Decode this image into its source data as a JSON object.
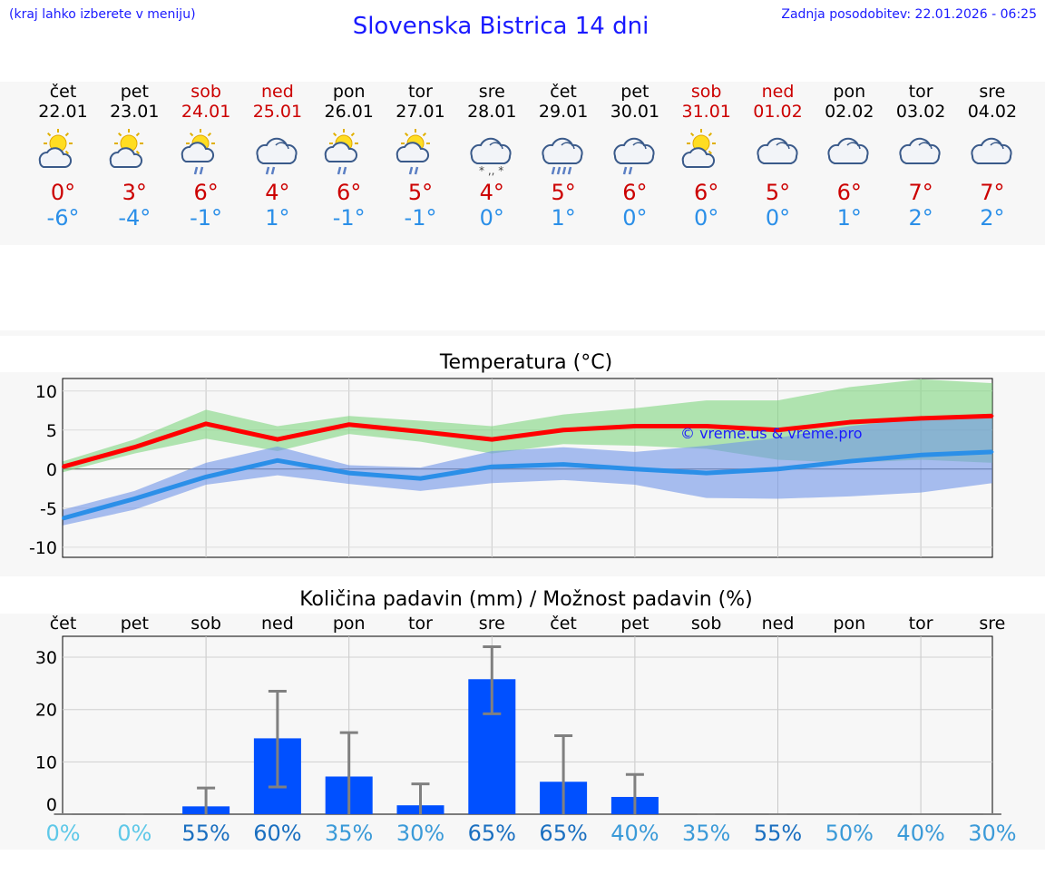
{
  "header": {
    "hint": "(kraj lahko izberete v meniju)",
    "title": "Slovenska Bistrica 14 dni",
    "updated": "Zadnja posodobitev: 22.01.2026 - 06:25"
  },
  "days": [
    {
      "name": "čet",
      "date": "22.01",
      "weekend": false,
      "icon": "sun-cloud-icon",
      "tmax": "0°",
      "tmin": "-6°"
    },
    {
      "name": "pet",
      "date": "23.01",
      "weekend": false,
      "icon": "sun-cloud-icon",
      "tmax": "3°",
      "tmin": "-4°"
    },
    {
      "name": "sob",
      "date": "24.01",
      "weekend": true,
      "icon": "sun-cloud-rain-icon",
      "tmax": "6°",
      "tmin": "-1°"
    },
    {
      "name": "ned",
      "date": "25.01",
      "weekend": true,
      "icon": "cloud-rain-icon",
      "tmax": "4°",
      "tmin": "1°"
    },
    {
      "name": "pon",
      "date": "26.01",
      "weekend": false,
      "icon": "sun-cloud-rain-icon",
      "tmax": "6°",
      "tmin": "-1°"
    },
    {
      "name": "tor",
      "date": "27.01",
      "weekend": false,
      "icon": "sun-cloud-rain-icon",
      "tmax": "5°",
      "tmin": "-1°"
    },
    {
      "name": "sre",
      "date": "28.01",
      "weekend": false,
      "icon": "cloud-snow-rain-icon",
      "tmax": "4°",
      "tmin": "0°"
    },
    {
      "name": "čet",
      "date": "29.01",
      "weekend": false,
      "icon": "cloud-heavy-rain-icon",
      "tmax": "5°",
      "tmin": "1°"
    },
    {
      "name": "pet",
      "date": "30.01",
      "weekend": false,
      "icon": "cloud-rain-icon",
      "tmax": "6°",
      "tmin": "0°"
    },
    {
      "name": "sob",
      "date": "31.01",
      "weekend": true,
      "icon": "sun-cloud-icon",
      "tmax": "6°",
      "tmin": "0°"
    },
    {
      "name": "ned",
      "date": "01.02",
      "weekend": true,
      "icon": "cloud-icon",
      "tmax": "5°",
      "tmin": "0°"
    },
    {
      "name": "pon",
      "date": "02.02",
      "weekend": false,
      "icon": "cloud-icon",
      "tmax": "6°",
      "tmin": "1°"
    },
    {
      "name": "tor",
      "date": "03.02",
      "weekend": false,
      "icon": "cloud-icon",
      "tmax": "7°",
      "tmin": "2°"
    },
    {
      "name": "sre",
      "date": "04.02",
      "weekend": false,
      "icon": "cloud-icon",
      "tmax": "7°",
      "tmin": "2°"
    }
  ],
  "colors": {
    "max_line": "#ff0000",
    "min_line": "#2b8fe8",
    "max_band": "#7fd67f",
    "min_band": "#6f94e8",
    "bar": "#0050ff",
    "error_bar": "#808080",
    "weekend": "#cc0000"
  },
  "watermark": "© vreme.us & vreme.pro",
  "chart_data": [
    {
      "type": "line",
      "title": "Temperatura (°C)",
      "x": [
        "22.01",
        "23.01",
        "24.01",
        "25.01",
        "26.01",
        "27.01",
        "28.01",
        "29.01",
        "30.01",
        "31.01",
        "01.02",
        "02.02",
        "03.02",
        "04.02"
      ],
      "series": [
        {
          "name": "max",
          "values": [
            0.3,
            2.8,
            5.8,
            3.8,
            5.7,
            4.8,
            3.8,
            5.0,
            5.5,
            5.5,
            5.0,
            6.0,
            6.5,
            6.8
          ],
          "band_low": [
            -0.4,
            2.0,
            3.9,
            2.3,
            4.5,
            3.5,
            2.0,
            3.2,
            3.0,
            2.6,
            1.2,
            0.8,
            1.2,
            0.8
          ],
          "band_high": [
            1.0,
            3.8,
            7.6,
            5.5,
            6.8,
            6.2,
            5.5,
            7.0,
            7.8,
            8.8,
            8.8,
            10.5,
            11.5,
            11.0
          ]
        },
        {
          "name": "min",
          "values": [
            -6.3,
            -3.8,
            -1.0,
            1.1,
            -0.5,
            -1.2,
            0.3,
            0.6,
            0.0,
            -0.5,
            0.0,
            1.0,
            1.8,
            2.2
          ],
          "band_low": [
            -7.2,
            -5.2,
            -2.0,
            -0.8,
            -1.9,
            -2.8,
            -1.8,
            -1.4,
            -2.0,
            -3.7,
            -3.8,
            -3.5,
            -3.0,
            -1.8
          ],
          "band_high": [
            -5.2,
            -2.8,
            0.8,
            2.9,
            0.5,
            0.2,
            2.3,
            2.8,
            2.2,
            3.0,
            4.0,
            5.5,
            6.5,
            6.5
          ]
        }
      ],
      "yticks": [
        10,
        5,
        0,
        -5,
        -10
      ],
      "ylim": [
        -11.3,
        11.6
      ]
    },
    {
      "type": "bar",
      "title": "Količina padavin (mm) / Možnost padavin (%)",
      "categories": [
        "čet",
        "pet",
        "sob",
        "ned",
        "pon",
        "tor",
        "sre",
        "čet",
        "pet",
        "sob",
        "ned",
        "pon",
        "tor",
        "sre"
      ],
      "values": [
        0,
        0,
        1.5,
        14.5,
        7.2,
        1.7,
        25.8,
        6.2,
        3.3,
        0,
        0,
        0,
        0,
        0
      ],
      "err_low": [
        0,
        0,
        0,
        5.2,
        0,
        0,
        19.2,
        0,
        0,
        0,
        0,
        0,
        0,
        0
      ],
      "err_high": [
        0,
        0,
        5.0,
        23.5,
        15.6,
        5.8,
        32.0,
        15.0,
        7.6,
        0,
        0,
        0,
        0,
        0
      ],
      "chance": [
        "0%",
        "0%",
        "55%",
        "60%",
        "35%",
        "30%",
        "65%",
        "65%",
        "40%",
        "35%",
        "55%",
        "50%",
        "40%",
        "30%"
      ],
      "chance_colors": [
        "#5ec8e8",
        "#5ec8e8",
        "#1a6fc0",
        "#1a6fc0",
        "#3a9ad8",
        "#3a9ad8",
        "#1a6fc0",
        "#1a6fc0",
        "#3a9ad8",
        "#3a9ad8",
        "#1a6fc0",
        "#3a9ad8",
        "#3a9ad8",
        "#3a9ad8"
      ],
      "yticks": [
        30,
        20,
        10,
        0
      ],
      "ylim": [
        0,
        34
      ]
    }
  ]
}
